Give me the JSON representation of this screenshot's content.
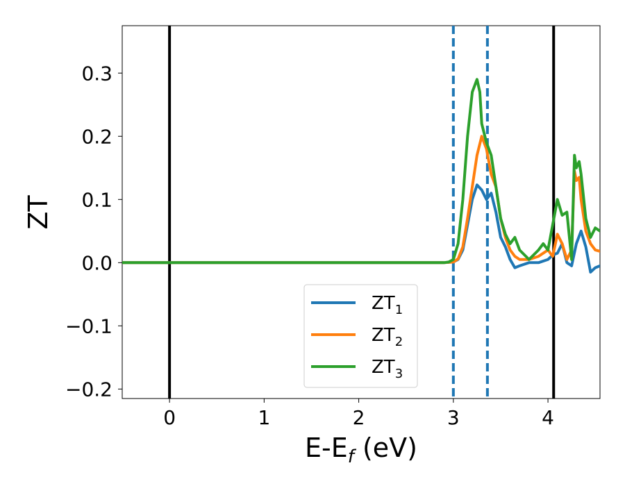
{
  "chart_data": {
    "type": "line",
    "xlabel": "E-E",
    "xlabel_sub": "f",
    "xlabel_unit": " (eV)",
    "ylabel": "ZT",
    "xlim": [
      -0.5,
      4.55
    ],
    "ylim": [
      -0.215,
      0.375
    ],
    "xticks": [
      0,
      1,
      2,
      3,
      4
    ],
    "xtick_labels": [
      "0",
      "1",
      "2",
      "3",
      "4"
    ],
    "yticks": [
      -0.2,
      -0.1,
      0.0,
      0.1,
      0.2,
      0.3
    ],
    "ytick_labels": [
      "−0.2",
      "−0.1",
      "0.0",
      "0.1",
      "0.2",
      "0.3"
    ],
    "grid": false,
    "legend_position": "lower-center",
    "vertical_lines": [
      {
        "x": 0.0,
        "style": "solid",
        "color": "#000000"
      },
      {
        "x": 3.0,
        "style": "dashed",
        "color": "#1f77b4"
      },
      {
        "x": 3.36,
        "style": "dashed",
        "color": "#1f77b4"
      },
      {
        "x": 4.06,
        "style": "solid",
        "color": "#000000"
      }
    ],
    "series": [
      {
        "name": "ZT",
        "subscript": "1",
        "color": "#1f77b4",
        "x": [
          -0.5,
          2.9,
          3.0,
          3.05,
          3.1,
          3.15,
          3.2,
          3.25,
          3.3,
          3.35,
          3.4,
          3.45,
          3.5,
          3.55,
          3.6,
          3.65,
          3.7,
          3.8,
          3.9,
          4.0,
          4.05,
          4.1,
          4.15,
          4.2,
          4.25,
          4.3,
          4.35,
          4.4,
          4.45,
          4.5,
          4.55
        ],
        "y": [
          0.0,
          0.0,
          0.001,
          0.005,
          0.02,
          0.06,
          0.1,
          0.123,
          0.115,
          0.1,
          0.11,
          0.08,
          0.04,
          0.025,
          0.005,
          -0.008,
          -0.005,
          0.0,
          0.0,
          0.005,
          0.012,
          0.015,
          0.03,
          0.0,
          -0.005,
          0.03,
          0.05,
          0.025,
          -0.015,
          -0.008,
          -0.005
        ]
      },
      {
        "name": "ZT",
        "subscript": "2",
        "color": "#ff7f0e",
        "x": [
          -0.5,
          2.9,
          3.0,
          3.05,
          3.1,
          3.15,
          3.2,
          3.25,
          3.3,
          3.35,
          3.4,
          3.45,
          3.5,
          3.55,
          3.6,
          3.65,
          3.7,
          3.8,
          3.9,
          4.0,
          4.05,
          4.1,
          4.15,
          4.2,
          4.25,
          4.28,
          4.3,
          4.33,
          4.35,
          4.4,
          4.45,
          4.5,
          4.55
        ],
        "y": [
          0.0,
          0.0,
          0.001,
          0.006,
          0.025,
          0.07,
          0.12,
          0.17,
          0.2,
          0.18,
          0.14,
          0.12,
          0.07,
          0.04,
          0.02,
          0.01,
          0.005,
          0.005,
          0.01,
          0.02,
          0.01,
          0.045,
          0.03,
          0.005,
          0.02,
          0.145,
          0.13,
          0.135,
          0.1,
          0.05,
          0.03,
          0.02,
          0.018
        ]
      },
      {
        "name": "ZT",
        "subscript": "3",
        "color": "#2ca02c",
        "x": [
          -0.5,
          2.9,
          2.95,
          3.0,
          3.05,
          3.1,
          3.15,
          3.2,
          3.25,
          3.28,
          3.3,
          3.35,
          3.4,
          3.45,
          3.5,
          3.55,
          3.6,
          3.65,
          3.7,
          3.8,
          3.9,
          3.95,
          4.0,
          4.05,
          4.1,
          4.15,
          4.2,
          4.25,
          4.28,
          4.3,
          4.33,
          4.35,
          4.4,
          4.45,
          4.5,
          4.55
        ],
        "y": [
          0.0,
          0.0,
          0.001,
          0.005,
          0.03,
          0.1,
          0.2,
          0.27,
          0.29,
          0.27,
          0.22,
          0.19,
          0.17,
          0.12,
          0.07,
          0.045,
          0.03,
          0.04,
          0.02,
          0.005,
          0.02,
          0.03,
          0.02,
          0.06,
          0.1,
          0.075,
          0.08,
          0.005,
          0.17,
          0.15,
          0.16,
          0.14,
          0.07,
          0.04,
          0.055,
          0.05
        ]
      }
    ]
  }
}
